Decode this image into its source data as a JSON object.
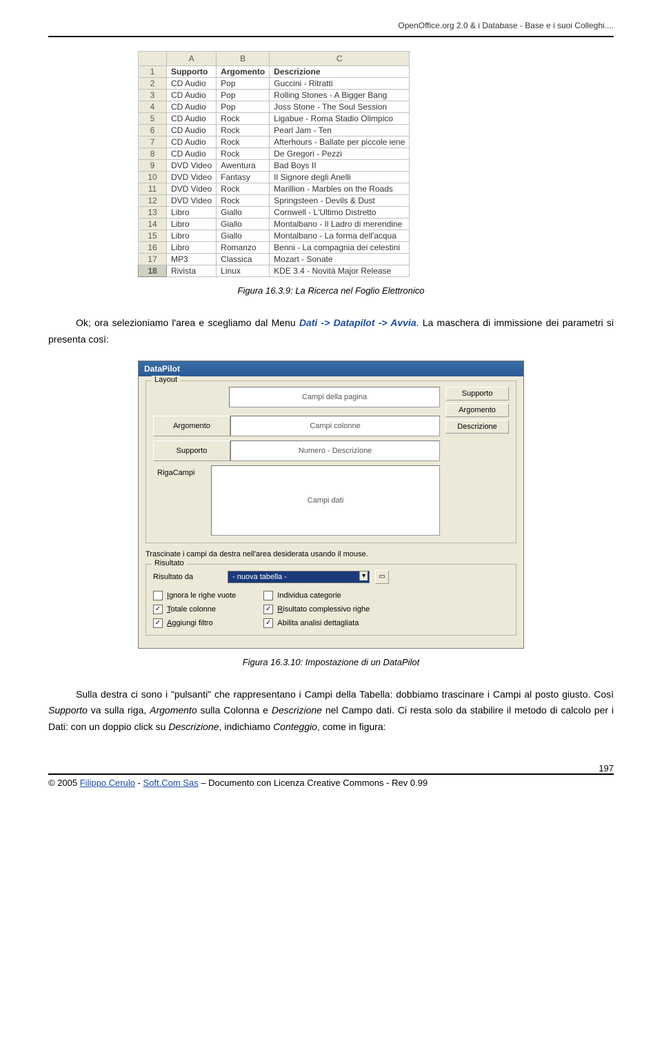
{
  "header": {
    "text": "OpenOffice.org 2.0 & i Database -  Base e i suoi Colleghi...."
  },
  "spreadsheet": {
    "columns": [
      "",
      "A",
      "B",
      "C"
    ],
    "rows": [
      {
        "n": "1",
        "a": "Supporto",
        "b": "Argomento",
        "c": "Descrizione",
        "hdr": true
      },
      {
        "n": "2",
        "a": "CD Audio",
        "b": "Pop",
        "c": "Guccini - Ritratti"
      },
      {
        "n": "3",
        "a": "CD Audio",
        "b": "Pop",
        "c": "Rolling Stones - A Bigger Bang"
      },
      {
        "n": "4",
        "a": "CD Audio",
        "b": "Pop",
        "c": "Joss Stone - The Soul Session"
      },
      {
        "n": "5",
        "a": "CD Audio",
        "b": "Rock",
        "c": "Ligabue  - Roma Stadio Olimpico"
      },
      {
        "n": "6",
        "a": "CD Audio",
        "b": "Rock",
        "c": "Pearl Jam - Ten"
      },
      {
        "n": "7",
        "a": "CD Audio",
        "b": "Rock",
        "c": "Afterhours - Ballate per piccole iene"
      },
      {
        "n": "8",
        "a": "CD Audio",
        "b": "Rock",
        "c": "De Gregori - Pezzi"
      },
      {
        "n": "9",
        "a": "DVD Video",
        "b": "Awentura",
        "c": "Bad Boys II"
      },
      {
        "n": "10",
        "a": "DVD Video",
        "b": "Fantasy",
        "c": "Il Signore degli Anelli"
      },
      {
        "n": "11",
        "a": "DVD Video",
        "b": "Rock",
        "c": "Marillion - Marbles on the Roads"
      },
      {
        "n": "12",
        "a": "DVD Video",
        "b": "Rock",
        "c": "Springsteen - Devils & Dust"
      },
      {
        "n": "13",
        "a": "Libro",
        "b": "Giallo",
        "c": "Cornwell - L'Ultimo Distretto"
      },
      {
        "n": "14",
        "a": "Libro",
        "b": "Giallo",
        "c": "Montalbano - Il Ladro di merendine"
      },
      {
        "n": "15",
        "a": "Libro",
        "b": "Giallo",
        "c": "Montalbano - La forma dell'acqua"
      },
      {
        "n": "16",
        "a": "Libro",
        "b": "Romanzo",
        "c": "Benni - La compagnia dei celestini"
      },
      {
        "n": "17",
        "a": "MP3",
        "b": "Classica",
        "c": "Mozart - Sonate"
      },
      {
        "n": "18",
        "a": "Rivista",
        "b": "Linux",
        "c": "KDE 3.4 - Novità Major Release",
        "active": true
      }
    ]
  },
  "caption1": "Figura 16.3.9: La Ricerca nel Foglio Elettronico",
  "para1_a": "Ok; ora selezioniamo l'area e scegliamo dal Menu ",
  "para1_kw": "Dati -> Datapilot -> Avvia",
  "para1_b": ". La maschera di immissione dei parametri si presenta così:",
  "datapilot": {
    "title": "DataPilot",
    "layoutLabel": "Layout",
    "pageFields": "Campi della pagina",
    "argLabel": "Argomento",
    "colFields": "Campi colonne",
    "supLabel": "Supporto",
    "valueLabel": "Numero - Descrizione",
    "rowLabel1": "Riga",
    "rowLabel2": "Campi",
    "dataFields": "Campi dati",
    "fieldButtons": [
      "Supporto",
      "Argomento",
      "Descrizione"
    ],
    "dragHint": "Trascinate i campi da destra nell'area desiderata usando il mouse.",
    "resultLabel": "Risultato",
    "resultFromLabel": "Risultato da",
    "resultSelect": "- nuova tabella -",
    "checks": {
      "left": [
        {
          "label": "Ignora le righe vuote",
          "checked": false,
          "u": "I"
        },
        {
          "label": "Totale colonne",
          "checked": true,
          "u": "T"
        },
        {
          "label": "Aggiungi filtro",
          "checked": true,
          "u": "A"
        }
      ],
      "right": [
        {
          "label": "Individua categorie",
          "checked": false,
          "u": ""
        },
        {
          "label": "Risultato complessivo righe",
          "checked": true,
          "u": "R"
        },
        {
          "label": "Abilita analisi dettagliata",
          "checked": true,
          "u": ""
        }
      ]
    }
  },
  "caption2": "Figura 16.3.10: Impostazione di un DataPilot",
  "para2": "Sulla destra ci sono i \"pulsanti\" che rappresentano i Campi della Tabella: dobbiamo trascinare i Campi al posto giusto. Così ",
  "para2_em1": "Supporto",
  "para2_b": " va sulla riga, ",
  "para2_em2": "Argomento",
  "para2_c": " sulla Colonna e ",
  "para2_em3": "Descrizione",
  "para2_d": " nel Campo dati. Ci resta solo da stabilire il metodo di calcolo per i Dati: con un doppio click su ",
  "para2_em4": "Descrizione",
  "para2_e": ", indichiamo ",
  "para2_em5": "Conteggio",
  "para2_f": ", come in figura:",
  "footer": {
    "pageNum": "197",
    "copyright": "© 2005 ",
    "author": "Filippo Cerulo",
    "sep": " - ",
    "company": "Soft.Com Sas",
    "tail": " – Documento con Licenza Creative Commons - Rev 0.99"
  }
}
